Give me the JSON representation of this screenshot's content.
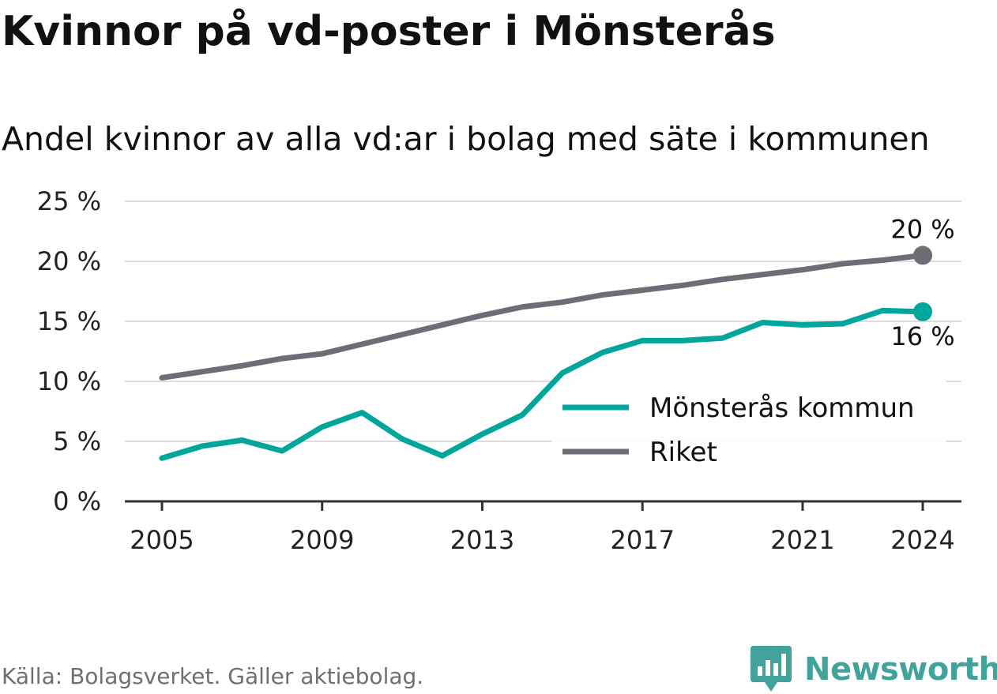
{
  "title": "Kvinnor på vd-poster i Mönsterås",
  "subtitle": "Andel kvinnor av alla vd:ar i bolag med säte i kommunen",
  "source": "Källa: Bolagsverket. Gäller aktiebolag.",
  "brand": {
    "name": "Newsworthy",
    "logo_icon": "bar-chart-badge-icon"
  },
  "colors": {
    "monsteras": "#00a69c",
    "riket": "#6e6d75",
    "grid": "#dcdcdc",
    "axis": "#333333",
    "brand": "#41a39c"
  },
  "chart_data": {
    "type": "line",
    "x": [
      2005,
      2006,
      2007,
      2008,
      2009,
      2010,
      2011,
      2012,
      2013,
      2014,
      2015,
      2016,
      2017,
      2018,
      2019,
      2020,
      2021,
      2022,
      2023,
      2024
    ],
    "series": [
      {
        "key": "monsteras",
        "name": "Mönsterås kommun",
        "color": "#00a69c",
        "values": [
          3.6,
          4.6,
          5.1,
          4.2,
          6.2,
          7.4,
          5.2,
          3.8,
          5.6,
          7.2,
          10.7,
          12.4,
          13.4,
          13.4,
          13.6,
          14.9,
          14.7,
          14.8,
          15.9,
          15.8
        ],
        "end_label": "16 %"
      },
      {
        "key": "riket",
        "name": "Riket",
        "color": "#6e6d75",
        "values": [
          10.3,
          10.8,
          11.3,
          11.9,
          12.3,
          13.1,
          13.9,
          14.7,
          15.5,
          16.2,
          16.6,
          17.2,
          17.6,
          18.0,
          18.5,
          18.9,
          19.3,
          19.8,
          20.1,
          20.5
        ],
        "end_label": "20 %"
      }
    ],
    "x_ticks": [
      2005,
      2009,
      2013,
      2017,
      2021,
      2024
    ],
    "x_tick_labels": [
      "2005",
      "2009",
      "2013",
      "2017",
      "2021",
      "2024"
    ],
    "y_ticks": [
      0,
      5,
      10,
      15,
      20,
      25
    ],
    "y_tick_labels": [
      "0 %",
      "5 %",
      "10 %",
      "15 %",
      "20 %",
      "25 %"
    ],
    "ylim": [
      0,
      25
    ],
    "xlim": [
      2005,
      2024
    ],
    "grid": true,
    "legend_position": "bottom-right"
  }
}
